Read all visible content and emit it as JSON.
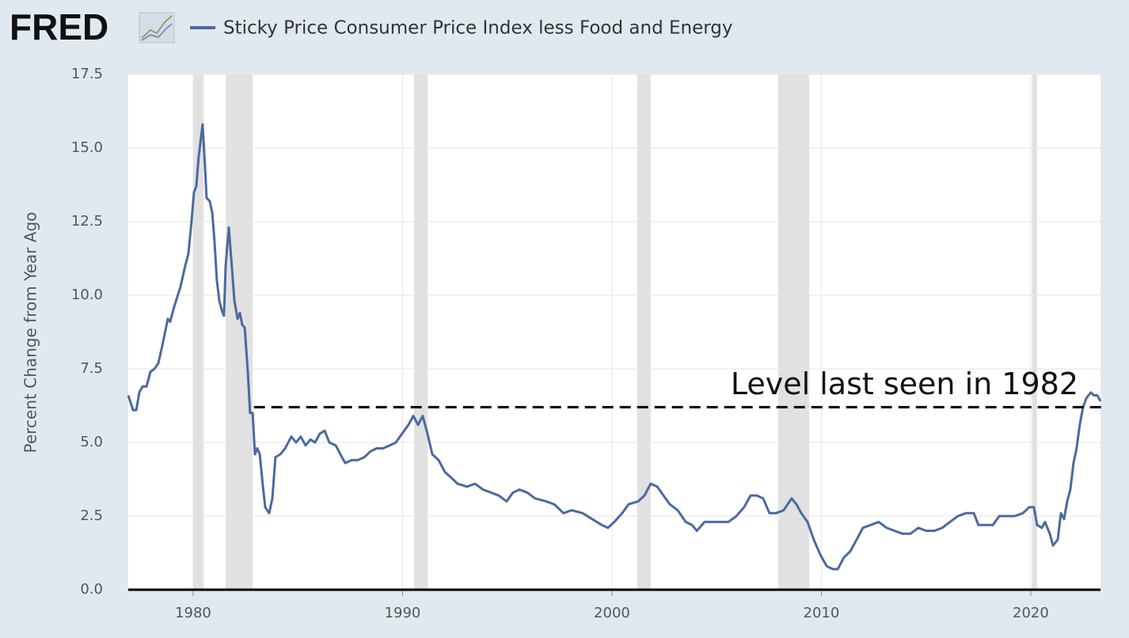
{
  "chart_data": {
    "type": "line",
    "source_logo": "FRED",
    "ylabel": "Percent Change from Year Ago",
    "x": [
      1976.9,
      1977.13,
      1977.28,
      1977.43,
      1977.58,
      1977.77,
      1977.96,
      1978.15,
      1978.34,
      1978.53,
      1978.79,
      1978.9,
      1979.09,
      1979.4,
      1979.62,
      1979.77,
      1979.92,
      1980.04,
      1980.15,
      1980.26,
      1980.45,
      1980.57,
      1980.64,
      1980.79,
      1980.91,
      1981.02,
      1981.13,
      1981.25,
      1981.36,
      1981.47,
      1981.55,
      1981.7,
      1981.81,
      1981.97,
      1982.12,
      1982.23,
      1982.34,
      1982.46,
      1982.61,
      1982.72,
      1982.84,
      1982.95,
      1983.06,
      1983.18,
      1983.33,
      1983.44,
      1983.63,
      1983.78,
      1983.93,
      1984.16,
      1984.39,
      1984.69,
      1984.91,
      1985.14,
      1985.37,
      1985.6,
      1985.82,
      1986.05,
      1986.28,
      1986.5,
      1986.81,
      1987.03,
      1987.26,
      1987.56,
      1987.86,
      1988.17,
      1988.47,
      1988.77,
      1989.07,
      1989.38,
      1989.68,
      1989.98,
      1990.28,
      1990.51,
      1990.74,
      1990.96,
      1991.19,
      1991.42,
      1991.72,
      1992.02,
      1992.33,
      1992.63,
      1993.08,
      1993.46,
      1993.84,
      1994.22,
      1994.59,
      1994.97,
      1995.27,
      1995.58,
      1995.95,
      1996.33,
      1996.86,
      1997.24,
      1997.69,
      1998.07,
      1998.6,
      1999.05,
      1999.51,
      1999.81,
      2000.11,
      2000.49,
      2000.79,
      2001.25,
      2001.55,
      2001.85,
      2002.16,
      2002.46,
      2002.76,
      2003.14,
      2003.52,
      2003.82,
      2004.05,
      2004.42,
      2004.8,
      2005.18,
      2005.56,
      2005.94,
      2006.31,
      2006.62,
      2006.92,
      2007.22,
      2007.52,
      2007.83,
      2008.2,
      2008.58,
      2008.81,
      2009.04,
      2009.34,
      2009.64,
      2009.94,
      2010.25,
      2010.55,
      2010.78,
      2011.08,
      2011.38,
      2011.68,
      2011.98,
      2012.36,
      2012.74,
      2013.12,
      2013.5,
      2013.88,
      2014.25,
      2014.63,
      2015.01,
      2015.39,
      2015.77,
      2016.14,
      2016.52,
      2016.9,
      2017.28,
      2017.5,
      2017.81,
      2018.19,
      2018.49,
      2018.87,
      2019.24,
      2019.62,
      2019.92,
      2020.15,
      2020.3,
      2020.53,
      2020.68,
      2020.91,
      2021.06,
      2021.29,
      2021.44,
      2021.59,
      2021.74,
      2021.89,
      2022.04,
      2022.19,
      2022.34,
      2022.5,
      2022.65,
      2022.87,
      2023.02,
      2023.18,
      2023.33
    ],
    "series": [
      {
        "name": "Sticky Price Consumer Price Index less Food and Energy",
        "color": "#4b6a9f",
        "values": [
          6.6,
          6.1,
          6.1,
          6.7,
          6.9,
          6.9,
          7.4,
          7.5,
          7.7,
          8.3,
          9.2,
          9.1,
          9.6,
          10.3,
          11.0,
          11.4,
          12.5,
          13.5,
          13.7,
          14.7,
          15.8,
          14.3,
          13.3,
          13.2,
          12.8,
          11.8,
          10.5,
          9.8,
          9.5,
          9.3,
          11.0,
          12.3,
          11.3,
          9.8,
          9.2,
          9.4,
          9.0,
          8.9,
          7.4,
          6.0,
          6.0,
          4.6,
          4.8,
          4.6,
          3.5,
          2.8,
          2.6,
          3.1,
          4.5,
          4.6,
          4.8,
          5.2,
          5.0,
          5.2,
          4.9,
          5.1,
          5.0,
          5.3,
          5.4,
          5.0,
          4.9,
          4.6,
          4.3,
          4.4,
          4.4,
          4.5,
          4.7,
          4.8,
          4.8,
          4.9,
          5.0,
          5.3,
          5.6,
          5.9,
          5.6,
          5.9,
          5.3,
          4.6,
          4.4,
          4.0,
          3.8,
          3.6,
          3.5,
          3.6,
          3.4,
          3.3,
          3.2,
          3.0,
          3.3,
          3.4,
          3.3,
          3.1,
          3.0,
          2.9,
          2.6,
          2.7,
          2.6,
          2.4,
          2.2,
          2.1,
          2.3,
          2.6,
          2.9,
          3.0,
          3.2,
          3.6,
          3.5,
          3.2,
          2.9,
          2.7,
          2.3,
          2.2,
          2.0,
          2.3,
          2.3,
          2.3,
          2.3,
          2.5,
          2.8,
          3.2,
          3.2,
          3.1,
          2.6,
          2.6,
          2.7,
          3.1,
          2.9,
          2.6,
          2.3,
          1.7,
          1.2,
          0.8,
          0.7,
          0.7,
          1.1,
          1.3,
          1.7,
          2.1,
          2.2,
          2.3,
          2.1,
          2.0,
          1.9,
          1.9,
          2.1,
          2.0,
          2.0,
          2.1,
          2.3,
          2.5,
          2.6,
          2.6,
          2.2,
          2.2,
          2.2,
          2.5,
          2.5,
          2.5,
          2.6,
          2.8,
          2.8,
          2.2,
          2.1,
          2.3,
          1.9,
          1.5,
          1.7,
          2.6,
          2.4,
          3.0,
          3.4,
          4.3,
          4.8,
          5.6,
          6.2,
          6.5,
          6.7,
          6.6,
          6.6,
          6.4
        ]
      }
    ],
    "recessions": [
      [
        1980.0,
        1980.5
      ],
      [
        1981.55,
        1982.84
      ],
      [
        1990.55,
        1991.2
      ],
      [
        2001.2,
        2001.85
      ],
      [
        2007.94,
        2009.42
      ],
      [
        2020.06,
        2020.3
      ]
    ],
    "recession_color": "#e1e1e1",
    "reference_line": {
      "y": 6.2,
      "x_start": 1982.9,
      "label": "Level last seen in 1982"
    },
    "xlim": [
      1976.9,
      2023.33
    ],
    "xticks": [
      1980,
      1990,
      2000,
      2010,
      2020
    ],
    "ylim": [
      0,
      17.5
    ],
    "yticks": [
      {
        "value": 0,
        "label": "0.0"
      },
      2.5,
      {
        "value": 5,
        "label": "5.0"
      },
      7.5,
      {
        "value": 10,
        "label": "10.0"
      },
      12.5,
      {
        "value": 15,
        "label": "15.0"
      },
      17.5
    ],
    "grid": true
  }
}
